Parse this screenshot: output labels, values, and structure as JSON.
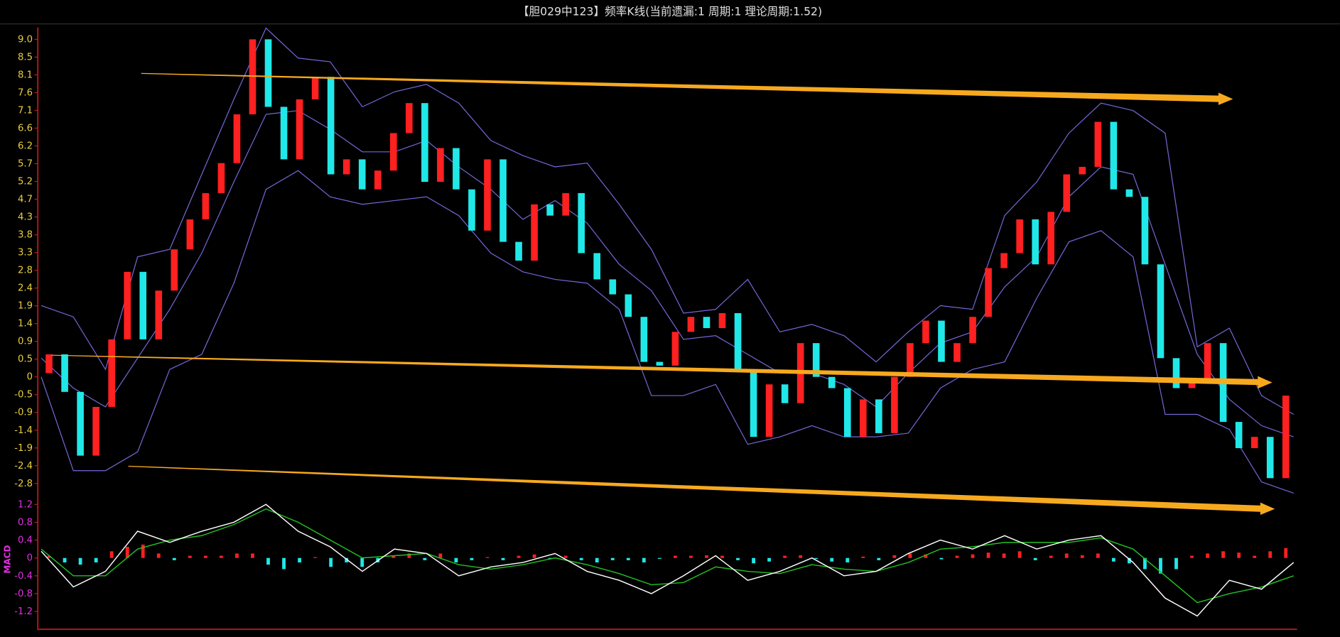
{
  "chart_data": {
    "type": "candlestick",
    "title": "【胆029中123】频率K线(当前遗漏:1 周期:1 理论周期:1.52)",
    "up_color": "#ff2020",
    "down_color": "#20e8e8",
    "open": [
      0.1,
      0.6,
      -0.4,
      -2.1,
      -0.8,
      1.0,
      2.8,
      1.0,
      2.3,
      3.4,
      4.2,
      4.9,
      5.7,
      7.0,
      9.0,
      7.2,
      5.8,
      7.4,
      8.0,
      5.4,
      5.8,
      5.0,
      5.5,
      6.5,
      7.3,
      5.2,
      6.1,
      5.0,
      3.9,
      5.8,
      3.6,
      3.1,
      4.6,
      4.3,
      4.9,
      3.3,
      2.6,
      2.2,
      1.6,
      0.4,
      0.3,
      1.2,
      1.6,
      1.3,
      1.7,
      0.2,
      -1.6,
      -0.2,
      -0.7,
      0.9,
      0.0,
      -0.3,
      -1.6,
      -0.6,
      -1.5,
      0.0,
      0.9,
      1.5,
      0.4,
      0.9,
      1.6,
      2.9,
      3.3,
      4.2,
      3.0,
      4.4,
      5.4,
      5.6,
      6.8,
      5.0,
      4.8,
      3.0,
      0.5,
      -0.3,
      -0.1,
      0.9,
      -1.2,
      -1.9,
      -1.6,
      -2.7
    ],
    "close": [
      0.6,
      -0.4,
      -2.1,
      -0.8,
      1.0,
      2.8,
      1.0,
      2.3,
      3.4,
      4.2,
      4.9,
      5.7,
      7.0,
      9.0,
      7.2,
      5.8,
      7.4,
      8.0,
      5.4,
      5.8,
      5.0,
      5.5,
      6.5,
      7.3,
      5.2,
      6.1,
      5.0,
      3.9,
      5.8,
      3.6,
      3.1,
      4.6,
      4.3,
      4.9,
      3.3,
      2.6,
      2.2,
      1.6,
      0.4,
      0.3,
      1.2,
      1.6,
      1.3,
      1.7,
      0.2,
      -1.6,
      -0.2,
      -0.7,
      0.9,
      0.0,
      -0.3,
      -1.6,
      -0.6,
      -1.5,
      0.0,
      0.9,
      1.5,
      0.4,
      0.9,
      1.6,
      2.9,
      3.3,
      4.2,
      3.0,
      4.4,
      5.4,
      5.6,
      6.8,
      5.0,
      4.8,
      3.0,
      0.5,
      -0.3,
      -0.1,
      0.9,
      -1.2,
      -1.9,
      -1.6,
      -2.7,
      -0.5
    ],
    "bands": {
      "color": "#7468d8",
      "upper": [
        1.9,
        1.6,
        0.2,
        3.2,
        3.4,
        5.4,
        7.4,
        9.3,
        8.5,
        8.4,
        7.2,
        7.6,
        7.8,
        7.3,
        6.3,
        5.9,
        5.6,
        5.7,
        4.6,
        3.4,
        1.7,
        1.8,
        2.6,
        1.2,
        1.4,
        1.1,
        0.4,
        1.2,
        1.9,
        1.8,
        4.3,
        5.2,
        6.5,
        7.3,
        7.1,
        6.5,
        0.8,
        1.3,
        -0.5,
        -1.0
      ],
      "middle": [
        0.5,
        -0.3,
        -0.8,
        0.5,
        1.8,
        3.3,
        5.2,
        7.0,
        7.1,
        6.6,
        6.0,
        6.0,
        6.3,
        5.6,
        5.0,
        4.2,
        4.7,
        4.1,
        3.0,
        2.3,
        1.0,
        1.1,
        0.6,
        0.1,
        0.1,
        -0.2,
        -0.8,
        0.1,
        0.9,
        1.2,
        2.4,
        3.2,
        4.8,
        5.6,
        5.4,
        3.0,
        0.6,
        -0.6,
        -1.3,
        -1.6
      ],
      "lower": [
        0.0,
        -2.5,
        -2.5,
        -2.0,
        0.2,
        0.6,
        2.5,
        5.0,
        5.5,
        4.8,
        4.6,
        4.7,
        4.8,
        4.3,
        3.3,
        2.8,
        2.6,
        2.5,
        1.8,
        -0.5,
        -0.5,
        -0.2,
        -1.8,
        -1.6,
        -1.3,
        -1.6,
        -1.6,
        -1.5,
        -0.3,
        0.2,
        0.4,
        2.1,
        3.6,
        3.9,
        3.2,
        -1.0,
        -1.0,
        -1.4,
        -2.8,
        -3.1
      ]
    },
    "ylim": [
      -3.27,
      9.32
    ],
    "yticks": [
      {
        "value": 9,
        "label": "9.0"
      },
      {
        "value": 8.526,
        "label": "8.5"
      },
      {
        "value": 8.053,
        "label": "8.1"
      },
      {
        "value": 7.579,
        "label": "7.6"
      },
      {
        "value": 7.105,
        "label": "7.1"
      },
      {
        "value": 6.632,
        "label": "6.6"
      },
      {
        "value": 6.158,
        "label": "6.2"
      },
      {
        "value": 5.684,
        "label": "5.7"
      },
      {
        "value": 5.211,
        "label": "5.2"
      },
      {
        "value": 4.737,
        "label": "4.7"
      },
      {
        "value": 4.263,
        "label": "4.3"
      },
      {
        "value": 3.789,
        "label": "3.8"
      },
      {
        "value": 3.316,
        "label": "3.3"
      },
      {
        "value": 2.842,
        "label": "2.8"
      },
      {
        "value": 2.368,
        "label": "2.4"
      },
      {
        "value": 1.895,
        "label": "1.9"
      },
      {
        "value": 1.421,
        "label": "1.4"
      },
      {
        "value": 0.947,
        "label": "0.9"
      },
      {
        "value": 0.474,
        "label": "0.5"
      },
      0,
      {
        "value": -0.474,
        "label": "-0.5"
      },
      {
        "value": -0.947,
        "label": "-0.9"
      },
      {
        "value": -1.421,
        "label": "-1.4"
      },
      {
        "value": -1.895,
        "label": "-1.9"
      },
      {
        "value": -2.368,
        "label": "-2.4"
      },
      {
        "value": -2.842,
        "label": "-2.8"
      }
    ],
    "macd": {
      "label": "MACD",
      "axis": "y2",
      "dif": {
        "color": "#ffffff",
        "values": [
          0.15,
          -0.65,
          -0.3,
          0.6,
          0.35,
          0.6,
          0.8,
          1.2,
          0.6,
          0.25,
          -0.3,
          0.2,
          0.1,
          -0.4,
          -0.2,
          -0.1,
          0.1,
          -0.3,
          -0.5,
          -0.8,
          -0.4,
          0.05,
          -0.5,
          -0.3,
          0.0,
          -0.4,
          -0.3,
          0.1,
          0.4,
          0.2,
          0.5,
          0.2,
          0.4,
          0.5,
          -0.1,
          -0.9,
          -1.3,
          -0.5,
          -0.7,
          -0.1
        ]
      },
      "dea": {
        "color": "#22c022",
        "values": [
          0.2,
          -0.4,
          -0.4,
          0.2,
          0.4,
          0.5,
          0.75,
          1.1,
          0.8,
          0.4,
          0.0,
          0.05,
          0.1,
          -0.15,
          -0.25,
          -0.15,
          0.0,
          -0.15,
          -0.35,
          -0.6,
          -0.55,
          -0.2,
          -0.3,
          -0.35,
          -0.15,
          -0.25,
          -0.3,
          -0.1,
          0.2,
          0.25,
          0.35,
          0.35,
          0.35,
          0.45,
          0.2,
          -0.4,
          -1.0,
          -0.8,
          -0.65,
          -0.4
        ]
      },
      "hist": [
        0.05,
        -0.1,
        -0.15,
        -0.1,
        0.15,
        0.25,
        0.3,
        0.1,
        -0.05,
        0.05,
        0.05,
        0.05,
        0.1,
        0.1,
        -0.15,
        -0.25,
        -0.1,
        0.02,
        -0.2,
        -0.1,
        -0.2,
        -0.1,
        0.05,
        0.1,
        -0.05,
        0.1,
        -0.1,
        -0.05,
        0.02,
        -0.05,
        0.05,
        0.08,
        -0.03,
        0.05,
        -0.05,
        -0.1,
        -0.05,
        -0.05,
        -0.1,
        -0.02,
        0.05,
        0.05,
        0.06,
        0.05,
        -0.05,
        -0.12,
        -0.08,
        0.05,
        0.06,
        -0.02,
        -0.08,
        -0.1,
        0.03,
        -0.05,
        0.06,
        0.1,
        0.08,
        -0.03,
        0.05,
        0.08,
        0.12,
        0.1,
        0.15,
        -0.05,
        0.05,
        0.1,
        0.06,
        0.1,
        -0.08,
        -0.12,
        -0.25,
        -0.35,
        -0.25,
        0.05,
        0.1,
        0.15,
        0.12,
        0.05,
        0.15,
        0.22
      ]
    },
    "y2lim": [
      -1.58,
      1.31
    ],
    "y2ticks": [
      1.2,
      0.8,
      0.4,
      0,
      -0.4,
      -0.8,
      -1.2
    ]
  }
}
